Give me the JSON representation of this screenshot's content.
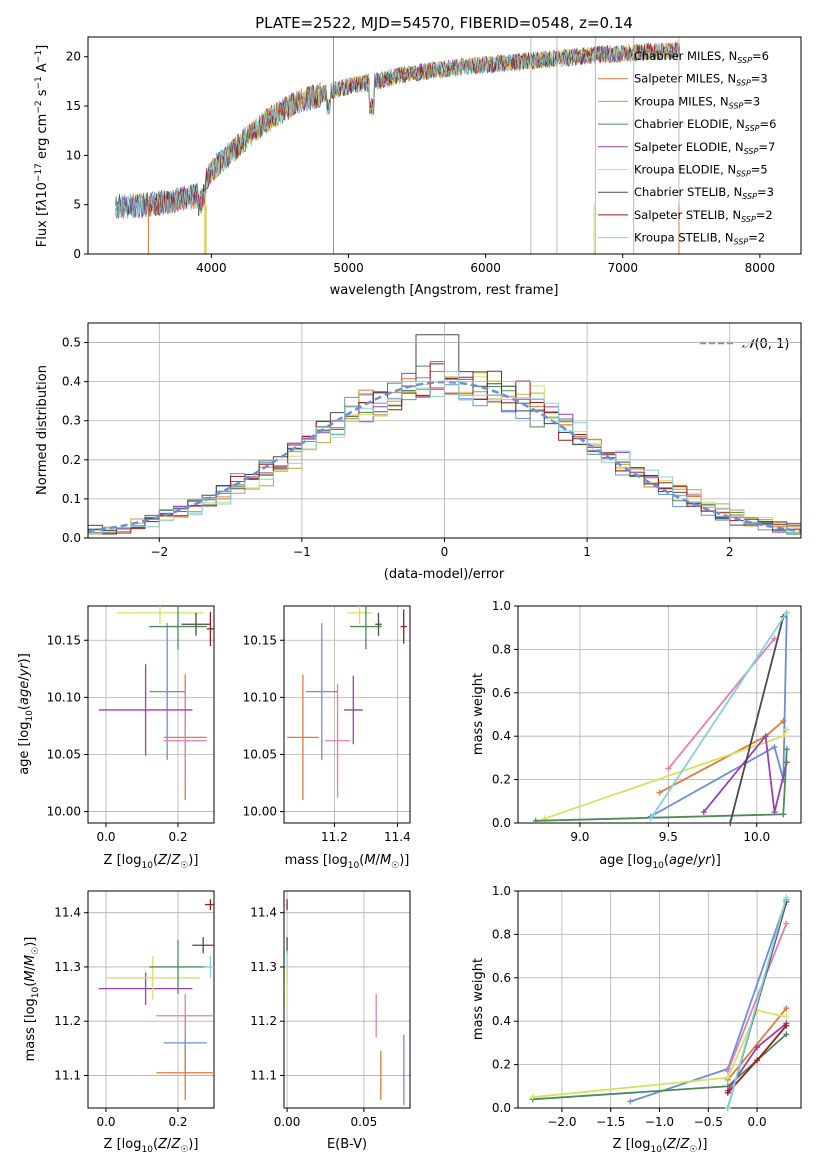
{
  "figure": {
    "title": "PLATE=2522, MJD=54570, FIBERID=0548, z=0.14"
  },
  "colors": {
    "chabrier_miles": "#6a8fd8",
    "salpeter_miles": "#e07b39",
    "kroupa_miles": "#c5a13a",
    "chabrier_elodie": "#4f8a5b",
    "salpeter_elodie": "#9b3fb5",
    "kroupa_elodie": "#d8e060",
    "chabrier_stelib": "#4a4a4a",
    "salpeter_stelib": "#9b1c1c",
    "kroupa_stelib": "#86d2d8",
    "pink": "#e37fb6",
    "normal_dashed": "#6a8fd8",
    "grid": "#b0b0b0"
  },
  "chart_data": [
    {
      "id": "spectrum",
      "type": "line",
      "xlabel": "wavelength [Angstrom, rest frame]",
      "ylabel": "Flux [f_λ 10^-17 erg cm^-2 s^-1 A^-1]",
      "xlim": [
        3100,
        8300
      ],
      "ylim": [
        0,
        22
      ],
      "xticks": [
        4000,
        5000,
        6000,
        7000,
        8000
      ],
      "yticks": [
        0,
        5,
        10,
        15,
        20
      ],
      "grid": false,
      "legend_position": "right",
      "legend": [
        {
          "label": "Chabrier MILES, N",
          "sub": "SSP",
          "suffix": "=6",
          "color": "#6a8fd8"
        },
        {
          "label": "Salpeter MILES, N",
          "sub": "SSP",
          "suffix": "=3",
          "color": "#e07b39"
        },
        {
          "label": "Kroupa MILES, N",
          "sub": "SSP",
          "suffix": "=3",
          "color": "#c5a13a"
        },
        {
          "label": "Chabrier ELODIE, N",
          "sub": "SSP",
          "suffix": "=6",
          "color": "#4f8a5b"
        },
        {
          "label": "Salpeter ELODIE, N",
          "sub": "SSP",
          "suffix": "=7",
          "color": "#9b3fb5"
        },
        {
          "label": "Kroupa ELODIE, N",
          "sub": "SSP",
          "suffix": "=5",
          "color": "#d8e060"
        },
        {
          "label": "Chabrier STELIB, N",
          "sub": "SSP",
          "suffix": "=3",
          "color": "#4a4a4a"
        },
        {
          "label": "Salpeter STELIB, N",
          "sub": "SSP",
          "suffix": "=2",
          "color": "#9b1c1c"
        },
        {
          "label": "Kroupa STELIB, N",
          "sub": "SSP",
          "suffix": "=2",
          "color": "#86d2d8"
        }
      ],
      "continuum_x": [
        3300,
        3500,
        3700,
        3900,
        4000,
        4200,
        4400,
        4600,
        4800,
        5000,
        5200,
        5400,
        5600,
        5800,
        6000,
        6200,
        6400,
        6600,
        6800,
        7000,
        7200,
        7400
      ],
      "continuum_y": [
        4.8,
        4.9,
        5.3,
        5.9,
        8.5,
        11.0,
        13.5,
        15.2,
        16.2,
        17.0,
        17.5,
        18.2,
        18.6,
        18.9,
        19.2,
        19.4,
        19.7,
        19.9,
        20.2,
        20.3,
        20.5,
        20.6
      ],
      "spike_x": [
        4890,
        6330,
        6520,
        6800,
        7080,
        7410
      ],
      "drop_x": [
        3540,
        3950,
        3960,
        6790,
        7410
      ]
    },
    {
      "id": "residuals",
      "type": "histogram",
      "xlabel": "(data-model)/error",
      "ylabel": "Normed distribution",
      "xlim": [
        -2.5,
        2.5
      ],
      "ylim": [
        0,
        0.55
      ],
      "xticks": [
        -2,
        -1,
        0,
        1,
        2
      ],
      "yticks": [
        0.0,
        0.1,
        0.2,
        0.3,
        0.4,
        0.5
      ],
      "grid": true,
      "legend_position": "top-right",
      "legend_label": "N(0,1)",
      "bin_width": 0.1
    },
    {
      "id": "age_vs_Z",
      "type": "scatter",
      "xlabel": "Z [log10(Z/Z☉)]",
      "ylabel": "age [log10(age/yr)]",
      "xlim": [
        -0.05,
        0.3
      ],
      "ylim": [
        9.99,
        10.18
      ],
      "xticks": [
        0.0,
        0.2
      ],
      "yticks": [
        10.0,
        10.05,
        10.1,
        10.15
      ],
      "grid": true,
      "points": [
        {
          "x": 0.17,
          "y": 10.105,
          "xerr": 0.05,
          "yerr": 0.06,
          "color": "#6a8fd8"
        },
        {
          "x": 0.22,
          "y": 10.065,
          "xerr": 0.06,
          "yerr": 0.055,
          "color": "#e07b39"
        },
        {
          "x": 0.22,
          "y": 10.062,
          "xerr": 0.06,
          "yerr": 0.04,
          "color": "#e37fb6"
        },
        {
          "x": 0.11,
          "y": 10.089,
          "xerr": 0.13,
          "yerr": 0.04,
          "color": "#9b3fb5"
        },
        {
          "x": 0.15,
          "y": 10.174,
          "xerr": 0.12,
          "yerr": 0.01,
          "color": "#d8e060"
        },
        {
          "x": 0.2,
          "y": 10.162,
          "xerr": 0.08,
          "yerr": 0.02,
          "color": "#4f8a5b"
        },
        {
          "x": 0.25,
          "y": 10.164,
          "xerr": 0.04,
          "yerr": 0.01,
          "color": "#4a4a4a"
        },
        {
          "x": 0.29,
          "y": 10.16,
          "xerr": 0.01,
          "yerr": 0.015,
          "color": "#9b1c1c"
        }
      ]
    },
    {
      "id": "age_vs_mass",
      "type": "scatter",
      "xlabel": "mass [log10(M/M☉)]",
      "ylabel": "",
      "xlim": [
        11.04,
        11.44
      ],
      "ylim": [
        9.99,
        10.18
      ],
      "xticks": [
        11.2,
        11.4
      ],
      "yticks": [
        10.0,
        10.05,
        10.1,
        10.15
      ],
      "grid": true,
      "points": [
        {
          "x": 11.16,
          "y": 10.105,
          "xerr": 0.05,
          "yerr": 0.06,
          "color": "#6a8fd8"
        },
        {
          "x": 11.1,
          "y": 10.065,
          "xerr": 0.05,
          "yerr": 0.055,
          "color": "#e07b39"
        },
        {
          "x": 11.21,
          "y": 10.062,
          "xerr": 0.04,
          "yerr": 0.05,
          "color": "#e37fb6"
        },
        {
          "x": 11.26,
          "y": 10.089,
          "xerr": 0.03,
          "yerr": 0.03,
          "color": "#9b3fb5"
        },
        {
          "x": 11.28,
          "y": 10.174,
          "xerr": 0.04,
          "yerr": 0.01,
          "color": "#d8e060"
        },
        {
          "x": 11.3,
          "y": 10.162,
          "xerr": 0.05,
          "yerr": 0.02,
          "color": "#4f8a5b"
        },
        {
          "x": 11.34,
          "y": 10.164,
          "xerr": 0.01,
          "yerr": 0.01,
          "color": "#4a4a4a"
        },
        {
          "x": 11.42,
          "y": 10.162,
          "xerr": 0.01,
          "yerr": 0.015,
          "color": "#9b1c1c"
        }
      ]
    },
    {
      "id": "weight_vs_age",
      "type": "line",
      "xlabel": "age [log10(age/yr)]",
      "ylabel": "mass weight",
      "xlim": [
        8.65,
        10.25
      ],
      "ylim": [
        0,
        1
      ],
      "xticks": [
        9.0,
        9.5,
        10.0
      ],
      "yticks": [
        0.0,
        0.2,
        0.4,
        0.6,
        0.8,
        1.0
      ],
      "grid": true,
      "series": [
        {
          "color": "#6a8fd8",
          "x": [
            9.4,
            10.1,
            10.15,
            10.17
          ],
          "y": [
            0.03,
            0.35,
            0.2,
            0.97
          ]
        },
        {
          "color": "#e07b39",
          "x": [
            9.45,
            10.05,
            10.15
          ],
          "y": [
            0.14,
            0.4,
            0.47
          ]
        },
        {
          "color": "#e37fb6",
          "x": [
            9.5,
            10.1
          ],
          "y": [
            0.25,
            0.85
          ]
        },
        {
          "color": "#d8e060",
          "x": [
            8.8,
            10.15,
            10.17
          ],
          "y": [
            0.02,
            0.4,
            0.43
          ]
        },
        {
          "color": "#9b3fb5",
          "x": [
            9.7,
            10.05,
            10.1,
            10.17
          ],
          "y": [
            0.05,
            0.4,
            0.05,
            0.28
          ]
        },
        {
          "color": "#4f8a5b",
          "x": [
            8.75,
            10.15,
            10.17
          ],
          "y": [
            0.01,
            0.04,
            0.34
          ]
        },
        {
          "color": "#4a4a4a",
          "x": [
            9.85,
            10.15
          ],
          "y": [
            0.0,
            0.95
          ]
        },
        {
          "color": "#86d2d8",
          "x": [
            9.4,
            10.17
          ],
          "y": [
            0.02,
            0.97
          ]
        }
      ]
    },
    {
      "id": "mass_vs_Z",
      "type": "scatter",
      "xlabel": "Z [log10(Z/Z☉)]",
      "ylabel": "mass [log10(M/M☉)]",
      "xlim": [
        -0.05,
        0.3
      ],
      "ylim": [
        11.04,
        11.44
      ],
      "xticks": [
        0.0,
        0.2
      ],
      "yticks": [
        11.1,
        11.2,
        11.3,
        11.4
      ],
      "grid": true,
      "points": [
        {
          "x": 0.22,
          "y": 11.16,
          "xerr": 0.06,
          "yerr": 0.05,
          "color": "#6a8fd8"
        },
        {
          "x": 0.22,
          "y": 11.105,
          "xerr": 0.08,
          "yerr": 0.05,
          "color": "#e07b39"
        },
        {
          "x": 0.22,
          "y": 11.21,
          "xerr": 0.08,
          "yerr": 0.04,
          "color": "#e37fb6"
        },
        {
          "x": 0.11,
          "y": 11.26,
          "xerr": 0.13,
          "yerr": 0.03,
          "color": "#9b3fb5"
        },
        {
          "x": 0.13,
          "y": 11.28,
          "xerr": 0.13,
          "yerr": 0.04,
          "color": "#d8e060"
        },
        {
          "x": 0.2,
          "y": 11.3,
          "xerr": 0.08,
          "yerr": 0.05,
          "color": "#4f8a5b"
        },
        {
          "x": 0.27,
          "y": 11.34,
          "xerr": 0.03,
          "yerr": 0.015,
          "color": "#4a4a4a"
        },
        {
          "x": 0.29,
          "y": 11.3,
          "xerr": 0.02,
          "yerr": 0.02,
          "color": "#86d2d8"
        },
        {
          "x": 0.29,
          "y": 11.415,
          "xerr": 0.015,
          "yerr": 0.01,
          "color": "#9b1c1c"
        }
      ]
    },
    {
      "id": "mass_vs_ebv",
      "type": "scatter",
      "xlabel": "E(B-V)",
      "ylabel": "",
      "xlim": [
        -0.002,
        0.08
      ],
      "ylim": [
        11.04,
        11.44
      ],
      "xticks": [
        0.0,
        0.05
      ],
      "yticks": [
        11.1,
        11.2,
        11.3,
        11.4
      ],
      "grid": true,
      "points": [
        {
          "x": 0.0,
          "y": 11.34,
          "xerr": 0.0,
          "yerr": 0.015,
          "color": "#4a4a4a"
        },
        {
          "x": 0.0,
          "y": 11.415,
          "xerr": 0.0,
          "yerr": 0.01,
          "color": "#9b1c1c"
        },
        {
          "x": 0.0,
          "y": 11.3,
          "xerr": 0.0,
          "yerr": 0.03,
          "color": "#86d2d8"
        },
        {
          "x": 0.0,
          "y": 11.26,
          "xerr": 0.0,
          "yerr": 0.04,
          "color": "#d8e060"
        },
        {
          "x": 0.058,
          "y": 11.21,
          "xerr": 0.0,
          "yerr": 0.04,
          "color": "#e37fb6"
        },
        {
          "x": 0.061,
          "y": 11.1,
          "xerr": 0.0,
          "yerr": 0.045,
          "color": "#e07b39"
        },
        {
          "x": 0.076,
          "y": 11.11,
          "xerr": 0.0,
          "yerr": 0.065,
          "color": "#6a8fd8"
        }
      ]
    },
    {
      "id": "weight_vs_Z",
      "type": "line",
      "xlabel": "Z [log10(Z/Z☉)]",
      "ylabel": "mass weight",
      "xlim": [
        -2.45,
        0.45
      ],
      "ylim": [
        0,
        1
      ],
      "xticks": [
        -2.0,
        -1.5,
        -1.0,
        -0.5,
        0.0
      ],
      "yticks": [
        0.0,
        0.2,
        0.4,
        0.6,
        0.8,
        1.0
      ],
      "grid": true,
      "series": [
        {
          "color": "#6a8fd8",
          "x": [
            -1.3,
            -0.3,
            0.3
          ],
          "y": [
            0.03,
            0.18,
            0.96
          ]
        },
        {
          "color": "#e07b39",
          "x": [
            -0.3,
            0.3
          ],
          "y": [
            0.13,
            0.46
          ]
        },
        {
          "color": "#e37fb6",
          "x": [
            -0.3,
            0.3
          ],
          "y": [
            0.17,
            0.85
          ]
        },
        {
          "color": "#4f8a5b",
          "x": [
            -2.3,
            -0.3,
            0.3
          ],
          "y": [
            0.04,
            0.1,
            0.34
          ]
        },
        {
          "color": "#d8e060",
          "x": [
            -2.3,
            -0.3,
            0.0,
            0.3
          ],
          "y": [
            0.05,
            0.14,
            0.45,
            0.42
          ]
        },
        {
          "color": "#9b3fb5",
          "x": [
            -0.3,
            0.0,
            0.3
          ],
          "y": [
            0.08,
            0.28,
            0.39
          ]
        },
        {
          "color": "#9b1c1c",
          "x": [
            -0.3,
            0.0,
            0.3
          ],
          "y": [
            0.07,
            0.22,
            0.38
          ]
        },
        {
          "color": "#4a4a4a",
          "x": [
            -0.3,
            0.3
          ],
          "y": [
            0.0,
            0.95
          ]
        },
        {
          "color": "#86d2d8",
          "x": [
            -0.3,
            0.3
          ],
          "y": [
            0.0,
            0.97
          ]
        }
      ]
    }
  ]
}
